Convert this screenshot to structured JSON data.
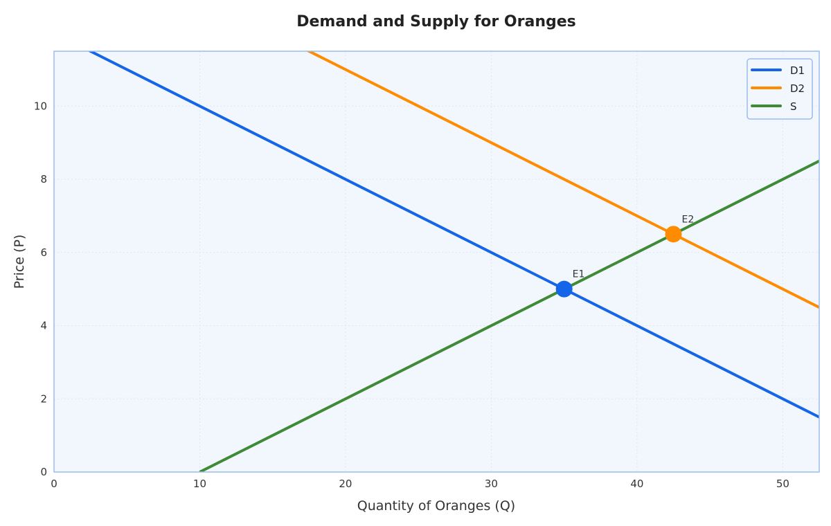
{
  "chart_data": {
    "type": "line",
    "title": "Demand and Supply for Oranges",
    "xlabel": "Quantity of Oranges (Q)",
    "ylabel": "Price (P)",
    "xlim": [
      0,
      52.5
    ],
    "ylim": [
      0,
      11.5
    ],
    "xticks": [
      0,
      10,
      20,
      30,
      40,
      50
    ],
    "yticks": [
      0,
      2,
      4,
      6,
      8,
      10
    ],
    "grid": true,
    "legend_position": "top-right",
    "background": "#f2f7fd",
    "frame_color": "#9bbcf0",
    "series": [
      {
        "name": "D1",
        "color": "#1565e8",
        "x": [
          0,
          60
        ],
        "y": [
          12,
          0
        ]
      },
      {
        "name": "D2",
        "color": "#ff8c00",
        "x": [
          0,
          75
        ],
        "y": [
          15,
          0
        ]
      },
      {
        "name": "S",
        "color": "#3f8a37",
        "x": [
          10,
          60
        ],
        "y": [
          0,
          10
        ]
      }
    ],
    "points": [
      {
        "label": "E1",
        "x": 35,
        "y": 5,
        "color": "#1565e8"
      },
      {
        "label": "E2",
        "x": 42.5,
        "y": 6.5,
        "color": "#ff8c00"
      }
    ]
  }
}
